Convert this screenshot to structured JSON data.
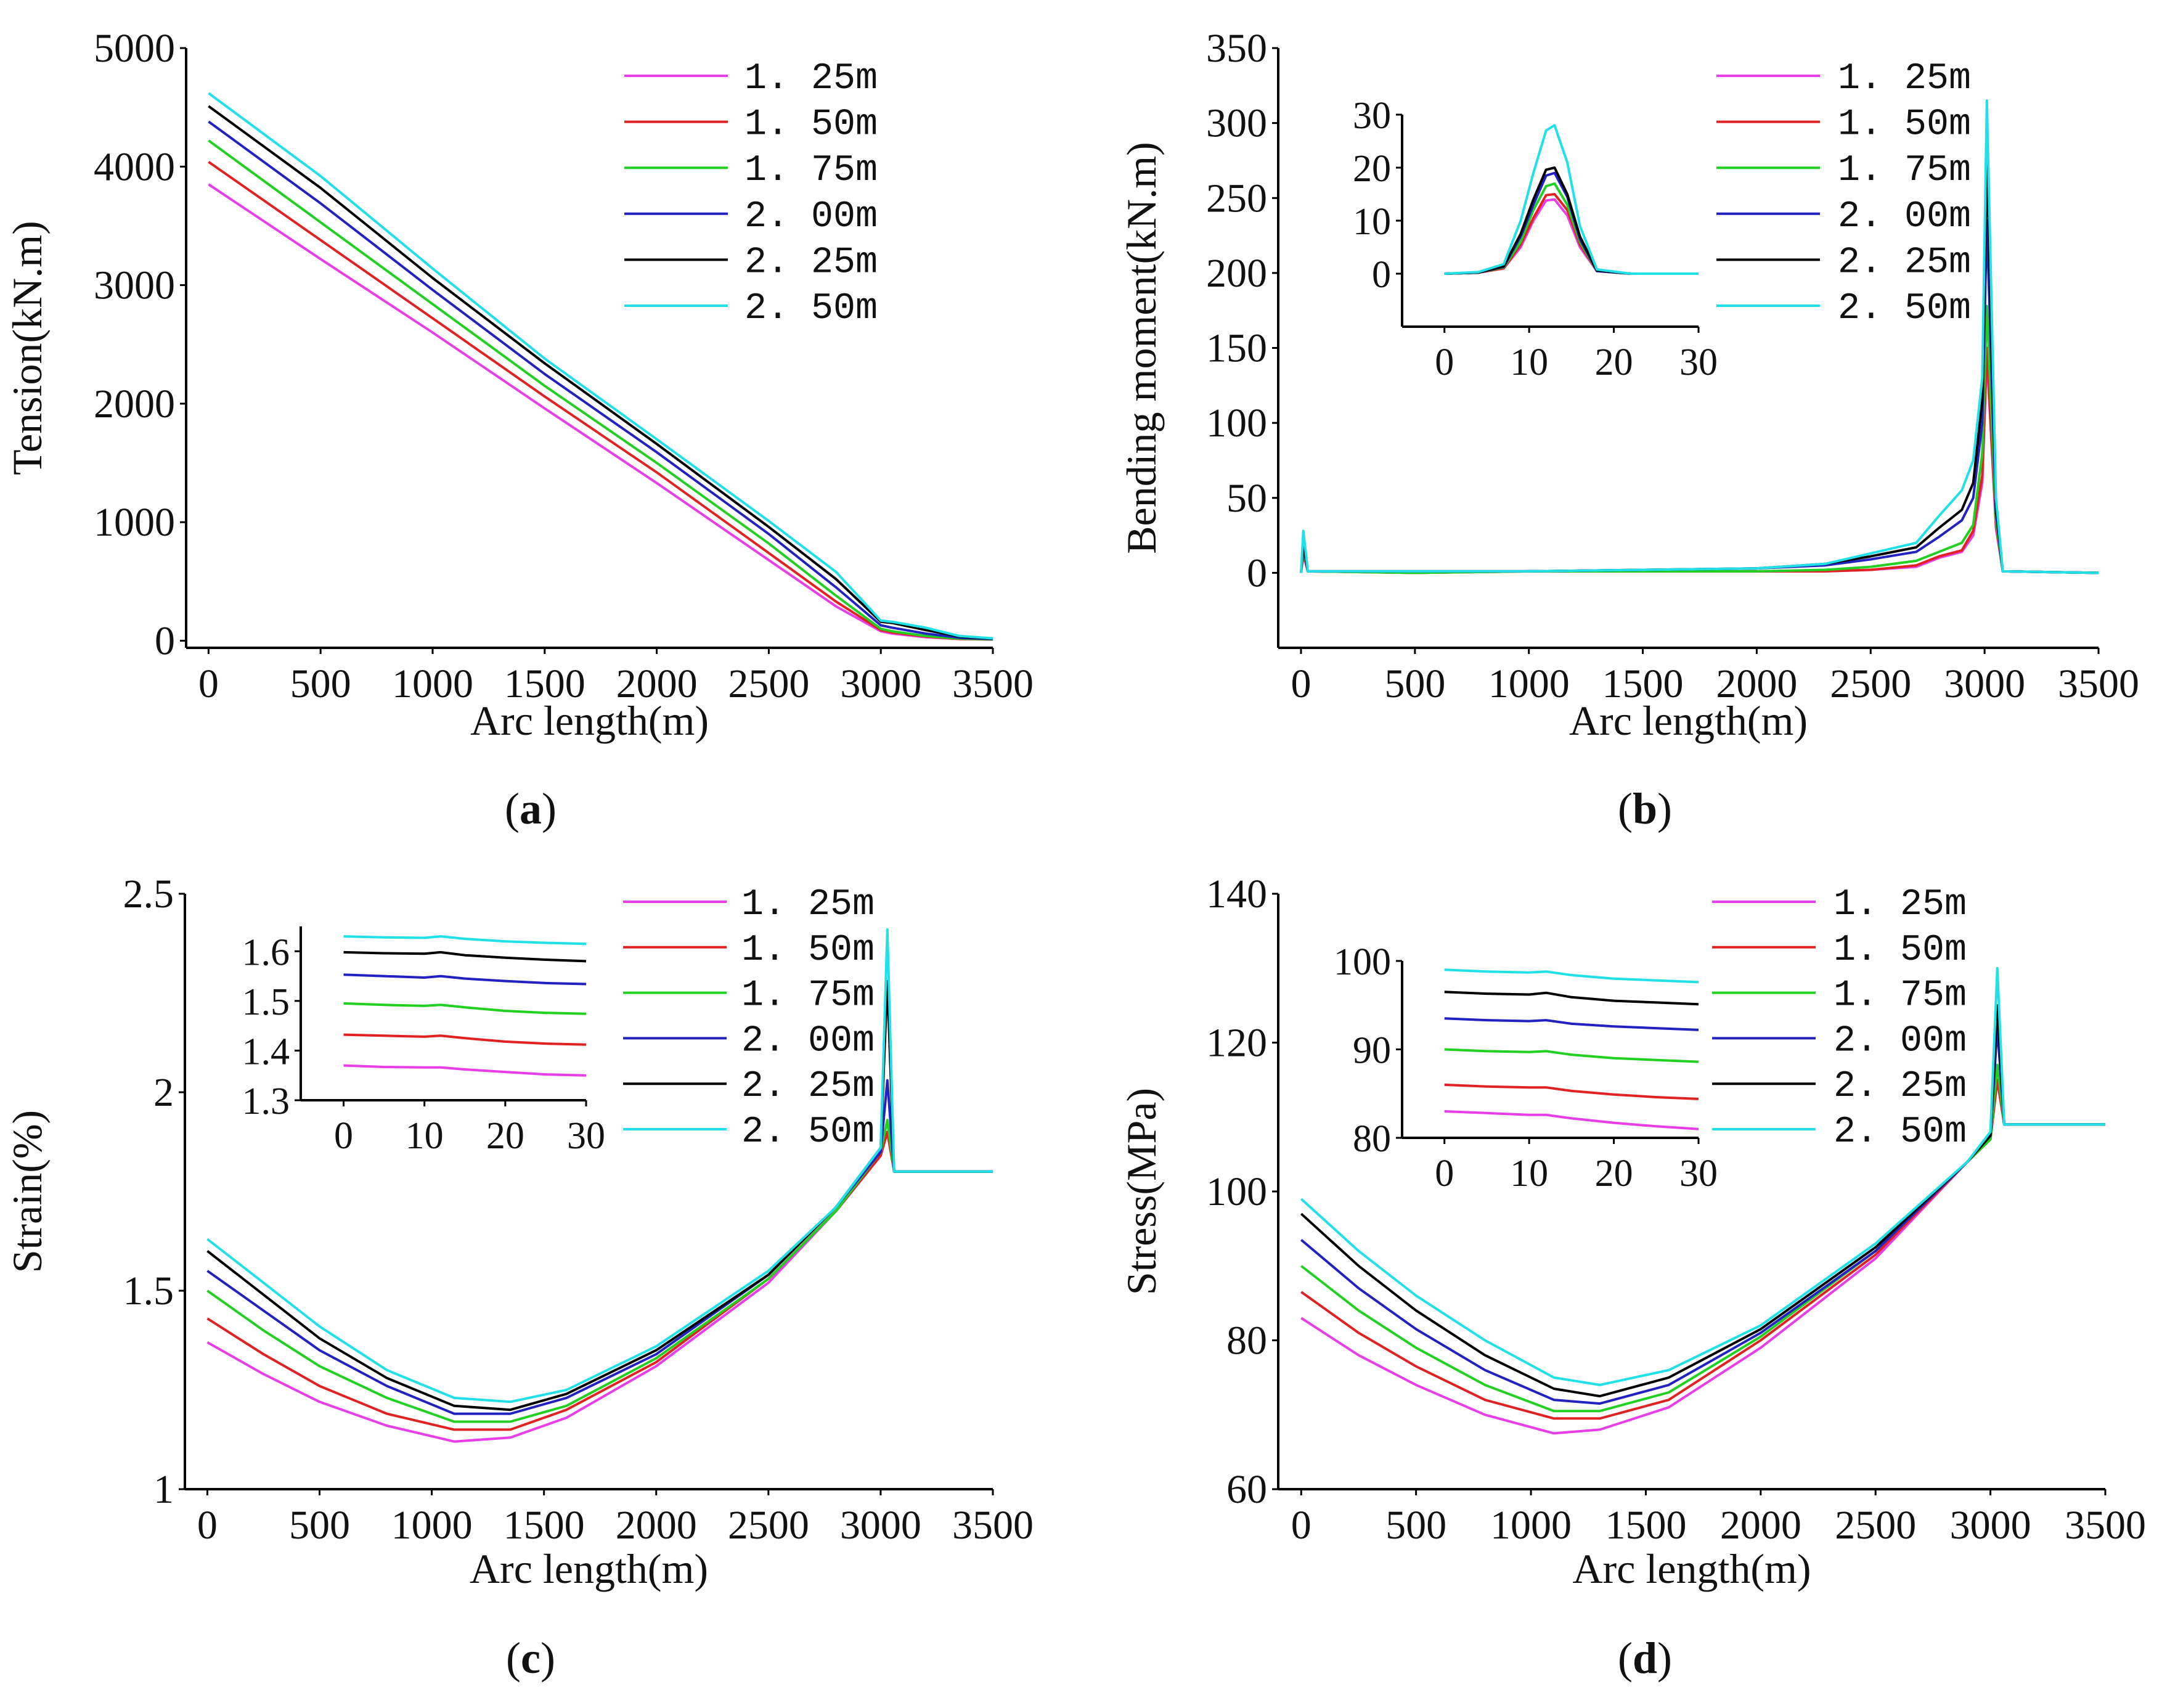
{
  "colors": {
    "1. 25m": "#e83ee8",
    "1. 50m": "#e02222",
    "1. 75m": "#22d022",
    "2. 00m": "#2222c0",
    "2. 25m": "#000000",
    "2. 50m": "#22e0e8"
  },
  "chart_data": [
    {
      "id": "a",
      "caption": "a",
      "type": "line",
      "xlabel": "Arc length(m)",
      "ylabel": "Tension(kN.m)",
      "xlim": [
        -100,
        3500
      ],
      "ylim": [
        -60,
        5000
      ],
      "xticks": [
        0,
        500,
        1000,
        1500,
        2000,
        2500,
        3000,
        3500
      ],
      "yticks": [
        0,
        1000,
        2000,
        3000,
        4000,
        5000
      ],
      "legend": "top-right",
      "x": [
        0,
        500,
        1000,
        1500,
        2000,
        2500,
        2800,
        3000,
        3050,
        3200,
        3350,
        3500
      ],
      "series": [
        {
          "name": "1. 25m",
          "values": [
            3850,
            3220,
            2600,
            1960,
            1330,
            680,
            290,
            80,
            60,
            30,
            15,
            10
          ]
        },
        {
          "name": "1. 50m",
          "values": [
            4040,
            3380,
            2720,
            2060,
            1420,
            740,
            330,
            90,
            70,
            35,
            15,
            10
          ]
        },
        {
          "name": "1. 75m",
          "values": [
            4220,
            3530,
            2840,
            2150,
            1500,
            820,
            380,
            100,
            80,
            40,
            18,
            12
          ]
        },
        {
          "name": "2. 00m",
          "values": [
            4380,
            3690,
            2960,
            2250,
            1590,
            900,
            450,
            130,
            110,
            60,
            25,
            15
          ]
        },
        {
          "name": "2. 25m",
          "values": [
            4510,
            3820,
            3060,
            2340,
            1660,
            960,
            520,
            160,
            150,
            90,
            35,
            18
          ]
        },
        {
          "name": "2. 50m",
          "values": [
            4620,
            3920,
            3140,
            2380,
            1700,
            1010,
            580,
            170,
            160,
            110,
            40,
            20
          ]
        }
      ]
    },
    {
      "id": "b",
      "caption": "b",
      "type": "line",
      "xlabel": "Arc length(m)",
      "ylabel": "Bending moment(kN.m)",
      "xlim": [
        -100,
        3500
      ],
      "ylim": [
        -50,
        350
      ],
      "xticks": [
        0,
        500,
        1000,
        1500,
        2000,
        2500,
        3000,
        3500
      ],
      "yticks": [
        0,
        50,
        100,
        150,
        200,
        250,
        300,
        350
      ],
      "legend": "top-right",
      "x": [
        0,
        10,
        30,
        500,
        1000,
        1500,
        2000,
        2300,
        2500,
        2700,
        2800,
        2900,
        2950,
        2990,
        3010,
        3050,
        3080,
        3500
      ],
      "series": [
        {
          "name": "1. 25m",
          "values": [
            0,
            12,
            1,
            0,
            1,
            1,
            1,
            1,
            2,
            4,
            10,
            14,
            25,
            60,
            145,
            30,
            1,
            0
          ]
        },
        {
          "name": "1. 50m",
          "values": [
            0,
            14,
            1,
            0,
            1,
            1,
            1,
            1,
            2,
            5,
            11,
            15,
            28,
            65,
            150,
            32,
            1,
            0
          ]
        },
        {
          "name": "1. 75m",
          "values": [
            0,
            16,
            1,
            0,
            1,
            1,
            1,
            2,
            4,
            8,
            14,
            20,
            32,
            80,
            178,
            35,
            1,
            0
          ]
        },
        {
          "name": "2. 00m",
          "values": [
            0,
            18,
            1,
            1,
            1,
            2,
            3,
            5,
            9,
            14,
            24,
            35,
            50,
            100,
            235,
            40,
            1,
            0
          ]
        },
        {
          "name": "2. 25m",
          "values": [
            0,
            20,
            1,
            1,
            1,
            2,
            3,
            6,
            11,
            17,
            30,
            42,
            60,
            115,
            275,
            45,
            1,
            0
          ]
        },
        {
          "name": "2. 50m",
          "values": [
            0,
            28,
            1,
            1,
            1,
            2,
            3,
            6,
            13,
            20,
            38,
            55,
            75,
            130,
            315,
            50,
            1,
            0
          ]
        }
      ]
    },
    {
      "id": "c",
      "caption": "c",
      "type": "line",
      "xlabel": "Arc length(m)",
      "ylabel": "Strain(%)",
      "xlim": [
        -100,
        3500
      ],
      "ylim": [
        1,
        2.5
      ],
      "xticks": [
        0,
        500,
        1000,
        1500,
        2000,
        2500,
        3000,
        3500
      ],
      "yticks": [
        1,
        1.5,
        2,
        2.5
      ],
      "legend": "top-right",
      "x": [
        0,
        250,
        500,
        800,
        1100,
        1350,
        1600,
        2000,
        2500,
        2800,
        3000,
        3030,
        3060,
        3500
      ],
      "series": [
        {
          "name": "1. 25m",
          "values": [
            1.37,
            1.29,
            1.22,
            1.16,
            1.12,
            1.13,
            1.18,
            1.31,
            1.52,
            1.7,
            1.84,
            1.9,
            1.8,
            1.8
          ]
        },
        {
          "name": "1. 50m",
          "values": [
            1.43,
            1.34,
            1.26,
            1.19,
            1.15,
            1.15,
            1.2,
            1.32,
            1.53,
            1.7,
            1.84,
            1.9,
            1.8,
            1.8
          ]
        },
        {
          "name": "1. 75m",
          "values": [
            1.5,
            1.4,
            1.31,
            1.23,
            1.17,
            1.17,
            1.21,
            1.33,
            1.53,
            1.7,
            1.85,
            1.93,
            1.8,
            1.8
          ]
        },
        {
          "name": "2. 00m",
          "values": [
            1.55,
            1.45,
            1.35,
            1.26,
            1.19,
            1.19,
            1.23,
            1.34,
            1.54,
            1.71,
            1.85,
            2.03,
            1.8,
            1.8
          ]
        },
        {
          "name": "2. 25m",
          "values": [
            1.6,
            1.49,
            1.38,
            1.28,
            1.21,
            1.2,
            1.24,
            1.35,
            1.54,
            1.71,
            1.86,
            2.28,
            1.8,
            1.8
          ]
        },
        {
          "name": "2. 50m",
          "values": [
            1.63,
            1.52,
            1.41,
            1.3,
            1.23,
            1.22,
            1.25,
            1.36,
            1.55,
            1.71,
            1.86,
            2.41,
            1.8,
            1.8
          ]
        }
      ]
    },
    {
      "id": "d",
      "caption": "d",
      "type": "line",
      "xlabel": "Arc length(m)",
      "ylabel": "Stress(MPa)",
      "xlim": [
        -100,
        3500
      ],
      "ylim": [
        60,
        140
      ],
      "xticks": [
        0,
        500,
        1000,
        1500,
        2000,
        2500,
        3000,
        3500
      ],
      "yticks": [
        60,
        80,
        100,
        120,
        140
      ],
      "legend": "top-right",
      "x": [
        0,
        250,
        500,
        800,
        1100,
        1300,
        1600,
        2000,
        2500,
        2900,
        3000,
        3030,
        3060,
        3500
      ],
      "series": [
        {
          "name": "1. 25m",
          "values": [
            83,
            78,
            74,
            70,
            67.5,
            68,
            71,
            79,
            91,
            104,
            107,
            115,
            109,
            109
          ]
        },
        {
          "name": "1. 50m",
          "values": [
            86.5,
            81,
            76.5,
            72,
            69.5,
            69.5,
            72,
            80,
            91.5,
            104,
            107,
            115,
            109,
            109
          ]
        },
        {
          "name": "1. 75m",
          "values": [
            90,
            84,
            79,
            74,
            70.5,
            70.5,
            73,
            80.5,
            92,
            104,
            107,
            117,
            109,
            109
          ]
        },
        {
          "name": "2. 00m",
          "values": [
            93.5,
            87,
            81.5,
            76,
            72,
            71.5,
            74,
            81,
            92,
            104,
            107.5,
            122,
            109,
            109
          ]
        },
        {
          "name": "2. 25m",
          "values": [
            97,
            90,
            84,
            78,
            73.5,
            72.5,
            75,
            81.5,
            92.5,
            104,
            107.5,
            125,
            109,
            109
          ]
        },
        {
          "name": "2. 50m",
          "values": [
            99,
            92,
            86,
            80,
            75,
            74,
            76,
            82,
            93,
            104,
            108,
            130,
            109,
            109
          ]
        }
      ]
    },
    {
      "id": "b-inset",
      "type": "line",
      "parent": "b",
      "xlim": [
        -5,
        30
      ],
      "ylim": [
        -10,
        30
      ],
      "xticks": [
        0,
        10,
        20,
        30
      ],
      "yticks": [
        0,
        10,
        20,
        30
      ],
      "x": [
        0,
        4,
        7,
        9,
        10.5,
        12,
        13,
        14.5,
        16,
        18,
        22,
        30
      ],
      "series": [
        {
          "name": "1. 25m",
          "values": [
            0,
            0.2,
            1,
            5,
            10,
            13.8,
            14,
            11,
            5,
            0.5,
            0,
            0
          ]
        },
        {
          "name": "1. 50m",
          "values": [
            0,
            0.2,
            1,
            5.5,
            10.5,
            14.8,
            15,
            12,
            5.5,
            0.5,
            0,
            0
          ]
        },
        {
          "name": "1. 75m",
          "values": [
            0,
            0.2,
            1.2,
            6,
            12,
            16.5,
            17,
            13,
            6,
            0.5,
            0,
            0
          ]
        },
        {
          "name": "2. 00m",
          "values": [
            0,
            0.2,
            1.3,
            7,
            13,
            18.5,
            19,
            14.5,
            6.5,
            0.5,
            0,
            0
          ]
        },
        {
          "name": "2. 25m",
          "values": [
            0,
            0.2,
            1.4,
            7.5,
            14,
            19.6,
            20,
            15,
            7,
            0.6,
            0,
            0
          ]
        },
        {
          "name": "2. 50m",
          "values": [
            0,
            0.3,
            1.8,
            10,
            19,
            27,
            28,
            21,
            9,
            0.8,
            0,
            0
          ]
        }
      ]
    },
    {
      "id": "c-inset",
      "type": "line",
      "parent": "c",
      "xlim": [
        -5.3,
        30
      ],
      "ylim": [
        1.3,
        1.65
      ],
      "xticks": [
        0,
        10,
        20,
        30
      ],
      "yticks": [
        1.3,
        1.4,
        1.5,
        1.6
      ],
      "x": [
        0,
        5,
        10,
        12,
        15,
        20,
        25,
        30
      ],
      "series": [
        {
          "name": "1. 25m",
          "values": [
            1.37,
            1.367,
            1.366,
            1.366,
            1.362,
            1.357,
            1.352,
            1.35
          ]
        },
        {
          "name": "1. 50m",
          "values": [
            1.432,
            1.43,
            1.428,
            1.43,
            1.425,
            1.418,
            1.414,
            1.412
          ]
        },
        {
          "name": "1. 75m",
          "values": [
            1.495,
            1.492,
            1.49,
            1.492,
            1.487,
            1.48,
            1.476,
            1.474
          ]
        },
        {
          "name": "2. 00m",
          "values": [
            1.553,
            1.55,
            1.547,
            1.55,
            1.545,
            1.54,
            1.536,
            1.534
          ]
        },
        {
          "name": "2. 25m",
          "values": [
            1.598,
            1.596,
            1.595,
            1.598,
            1.592,
            1.587,
            1.583,
            1.58
          ]
        },
        {
          "name": "2. 50m",
          "values": [
            1.63,
            1.628,
            1.627,
            1.63,
            1.625,
            1.62,
            1.617,
            1.615
          ]
        }
      ]
    },
    {
      "id": "d-inset",
      "type": "line",
      "parent": "d",
      "xlim": [
        -5,
        30
      ],
      "ylim": [
        80,
        100
      ],
      "xticks": [
        0,
        10,
        20,
        30
      ],
      "yticks": [
        80,
        90,
        100
      ],
      "x": [
        0,
        5,
        10,
        12,
        15,
        20,
        25,
        30
      ],
      "series": [
        {
          "name": "1. 25m",
          "values": [
            83,
            82.8,
            82.6,
            82.6,
            82.2,
            81.7,
            81.3,
            81
          ]
        },
        {
          "name": "1. 50m",
          "values": [
            86,
            85.8,
            85.7,
            85.7,
            85.3,
            84.9,
            84.6,
            84.4
          ]
        },
        {
          "name": "1. 75m",
          "values": [
            90,
            89.8,
            89.7,
            89.8,
            89.4,
            89,
            88.8,
            88.6
          ]
        },
        {
          "name": "2. 00m",
          "values": [
            93.5,
            93.3,
            93.2,
            93.3,
            92.9,
            92.6,
            92.4,
            92.2
          ]
        },
        {
          "name": "2. 25m",
          "values": [
            96.5,
            96.3,
            96.2,
            96.4,
            95.9,
            95.5,
            95.3,
            95.1
          ]
        },
        {
          "name": "2. 50m",
          "values": [
            99,
            98.8,
            98.7,
            98.8,
            98.4,
            98,
            97.8,
            97.6
          ]
        }
      ]
    }
  ]
}
